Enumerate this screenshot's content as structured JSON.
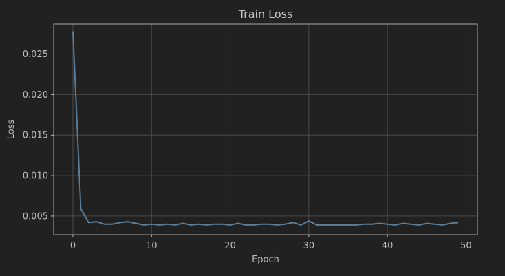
{
  "chart_data": {
    "type": "line",
    "title": "Train Loss",
    "xlabel": "Epoch",
    "ylabel": "Loss",
    "xlim": [
      -2.45,
      51.45
    ],
    "ylim": [
      0.0027,
      0.0287
    ],
    "x_ticks": [
      0,
      10,
      20,
      30,
      40,
      50
    ],
    "y_ticks": [
      0.005,
      0.01,
      0.015,
      0.02,
      0.025
    ],
    "x_tick_labels": [
      "0",
      "10",
      "20",
      "30",
      "40",
      "50"
    ],
    "y_tick_labels": [
      "0.005",
      "0.010",
      "0.015",
      "0.020",
      "0.025"
    ],
    "grid": true,
    "line_color": "#5b7f9b",
    "series": [
      {
        "x": [
          0,
          1,
          2,
          3,
          4,
          5,
          6,
          7,
          8,
          9,
          10,
          11,
          12,
          13,
          14,
          15,
          16,
          17,
          18,
          19,
          20,
          21,
          22,
          23,
          24,
          25,
          26,
          27,
          28,
          29,
          30,
          31,
          32,
          33,
          34,
          35,
          36,
          37,
          38,
          39,
          40,
          41,
          42,
          43,
          44,
          45,
          46,
          47,
          48,
          49
        ],
        "values": [
          0.0278,
          0.0059,
          0.0042,
          0.0043,
          0.004,
          0.004,
          0.0042,
          0.0043,
          0.0041,
          0.0039,
          0.004,
          0.0039,
          0.004,
          0.0039,
          0.0041,
          0.0039,
          0.004,
          0.0039,
          0.004,
          0.004,
          0.0039,
          0.0041,
          0.0039,
          0.0039,
          0.004,
          0.004,
          0.0039,
          0.004,
          0.0042,
          0.0039,
          0.0044,
          0.0039,
          0.0039,
          0.0039,
          0.0039,
          0.0039,
          0.0039,
          0.004,
          0.004,
          0.0041,
          0.004,
          0.0039,
          0.0041,
          0.004,
          0.0039,
          0.0041,
          0.004,
          0.0039,
          0.0041,
          0.0042
        ]
      }
    ]
  }
}
